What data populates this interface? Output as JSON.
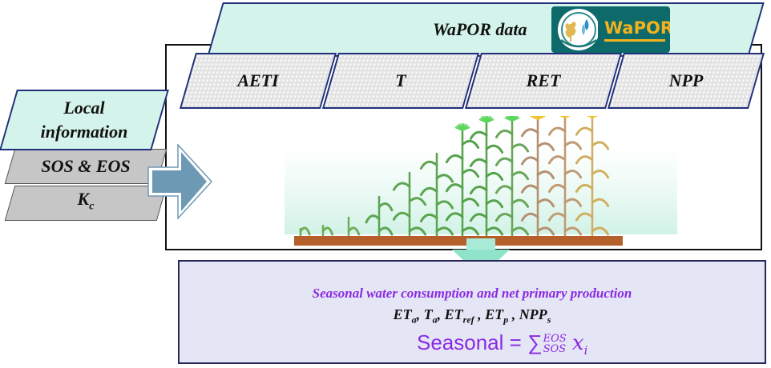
{
  "wapor": {
    "title": "WaPOR data",
    "logo_text": "WaPOR",
    "variables": [
      {
        "label": "AETI"
      },
      {
        "label": "T"
      },
      {
        "label": "RET"
      },
      {
        "label": "NPP"
      }
    ]
  },
  "local_info": {
    "title": "Local information",
    "items": [
      {
        "label": "SOS & EOS"
      },
      {
        "label": "K",
        "sub": "c"
      }
    ]
  },
  "output": {
    "title": "Seasonal water consumption and net primary production",
    "variables": [
      {
        "label": "ET",
        "sub": "a"
      },
      {
        "label": "T",
        "sub": "a"
      },
      {
        "label": "ET",
        "sub": "ref"
      },
      {
        "label": "ET",
        "sub": "p"
      },
      {
        "label": "NPP",
        "sub": "s"
      }
    ],
    "formula": {
      "lhs": "Seasonal",
      "operator": "=",
      "sum_symbol": "∑",
      "upper": "EOS",
      "lower": "SOS",
      "term": "x",
      "term_sub": "i"
    }
  },
  "colors": {
    "box_fill": "#d4f3ea",
    "box_border": "#1f2f7a",
    "arrow": "#6e99b4",
    "output_fill": "#e5e6f5",
    "output_title": "#8a2be2"
  },
  "icons": [
    "wapor-logo-icon",
    "crop-growth-illustration",
    "right-arrow-icon",
    "down-arrow-icon"
  ]
}
